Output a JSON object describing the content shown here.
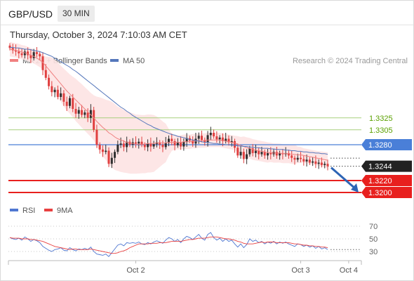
{
  "header": {
    "symbol": "GBP/USD",
    "timeframe": "30 MIN",
    "datetime": "Thursday, October 3, 2024 7:10:03 AM CET"
  },
  "legend": {
    "ma20_label": "MA 20 + Bollinger Bands",
    "ma50_label": "MA 50",
    "source": "Research © 2024 Trading Central",
    "rsi_label": "RSI",
    "rsi_ma_label": "9MA"
  },
  "colors": {
    "bull": "#2e2e2e",
    "bear": "#e04040",
    "ma20": "#f08080",
    "ma50": "#5577bb",
    "band_fill": "#fde3e3",
    "support": "#e8201e",
    "pivot": "#4a7fd8",
    "resistance_line": "#a7cf7d",
    "resistance_text": "#5aa000",
    "rsi": "#4f77d1",
    "rsi_ma": "#e84040",
    "arrow": "#2d64b5"
  },
  "chart_data": [
    {
      "type": "candlestick",
      "title": "GBP/USD 30 MIN",
      "x_tick_labels": [
        "Oct 2",
        "Oct 3",
        "Oct 4"
      ],
      "x_tick_index": [
        42,
        97,
        113
      ],
      "y_range": [
        1.319,
        1.336
      ],
      "last_price": 1.3244,
      "levels": [
        {
          "value": 1.3325,
          "label": "1.3325",
          "kind": "resistance"
        },
        {
          "value": 1.3305,
          "label": "1.3305",
          "kind": "resistance"
        },
        {
          "value": 1.328,
          "label": "1.3280",
          "kind": "pivot"
        },
        {
          "value": 1.3244,
          "label": "1.3244",
          "kind": "last"
        },
        {
          "value": 1.322,
          "label": "1.3220",
          "kind": "support"
        },
        {
          "value": 1.32,
          "label": "1.3200",
          "kind": "support"
        }
      ],
      "close": [
        1.3442,
        1.3438,
        1.3436,
        1.3433,
        1.343,
        1.3436,
        1.343,
        1.3425,
        1.3435,
        1.3432,
        1.3428,
        1.3405,
        1.3392,
        1.3378,
        1.3368,
        1.3372,
        1.336,
        1.3366,
        1.3352,
        1.3345,
        1.3358,
        1.334,
        1.3332,
        1.3338,
        1.333,
        1.3334,
        1.3325,
        1.3338,
        1.3305,
        1.328,
        1.3272,
        1.3268,
        1.327,
        1.3248,
        1.3258,
        1.3268,
        1.328,
        1.3282,
        1.3276,
        1.3285,
        1.328,
        1.3284,
        1.3282,
        1.3285,
        1.328,
        1.3276,
        1.3282,
        1.3277,
        1.3281,
        1.3284,
        1.328,
        1.3276,
        1.3283,
        1.329,
        1.3286,
        1.3279,
        1.3284,
        1.3277,
        1.3285,
        1.3291,
        1.3287,
        1.3282,
        1.329,
        1.3295,
        1.3288,
        1.3284,
        1.3296,
        1.33,
        1.3294,
        1.3289,
        1.3292,
        1.3286,
        1.329,
        1.3284,
        1.3286,
        1.3275,
        1.3262,
        1.3268,
        1.3256,
        1.3264,
        1.3274,
        1.3266,
        1.327,
        1.3264,
        1.3268,
        1.3262,
        1.3266,
        1.3264,
        1.3268,
        1.3262,
        1.3266,
        1.3264,
        1.3266,
        1.3262,
        1.3258,
        1.3255,
        1.3258,
        1.3256,
        1.3252,
        1.3255,
        1.325,
        1.3252,
        1.3248,
        1.325,
        1.3246,
        1.3248,
        1.3244
      ],
      "ma20": [
        1.344,
        1.3439,
        1.3438,
        1.3437,
        1.3435,
        1.3434,
        1.3432,
        1.343,
        1.3428,
        1.3425,
        1.3422,
        1.3418,
        1.3412,
        1.3406,
        1.34,
        1.3394,
        1.3388,
        1.3382,
        1.3376,
        1.337,
        1.3365,
        1.336,
        1.3355,
        1.335,
        1.3345,
        1.334,
        1.3335,
        1.333,
        1.3325,
        1.3319,
        1.3314,
        1.3309,
        1.3305,
        1.33,
        1.3297,
        1.3293,
        1.329,
        1.3288,
        1.3286,
        1.3284,
        1.3283,
        1.3282,
        1.3281,
        1.3281,
        1.3281,
        1.3281,
        1.3282,
        1.3282,
        1.3282,
        1.3283,
        1.3283,
        1.3283,
        1.3283,
        1.3284,
        1.3284,
        1.3284,
        1.3284,
        1.3284,
        1.3285,
        1.3285,
        1.3285,
        1.3286,
        1.3286,
        1.3287,
        1.3287,
        1.3287,
        1.3288,
        1.3288,
        1.3288,
        1.3288,
        1.3288,
        1.3287,
        1.3286,
        1.3285,
        1.3284,
        1.3283,
        1.3281,
        1.3279,
        1.3277,
        1.3275,
        1.3274,
        1.3272,
        1.3271,
        1.327,
        1.3269,
        1.3268,
        1.3267,
        1.3267,
        1.3266,
        1.3266,
        1.3266,
        1.3265,
        1.3265,
        1.3265,
        1.3264,
        1.3264,
        1.3263,
        1.3263,
        1.3262,
        1.3261,
        1.326,
        1.3259,
        1.3258,
        1.3257,
        1.3256,
        1.3255,
        1.3254
      ],
      "ma50": [
        1.3443,
        1.3443,
        1.3442,
        1.3442,
        1.3441,
        1.344,
        1.344,
        1.3439,
        1.3438,
        1.3437,
        1.3436,
        1.3434,
        1.3432,
        1.343,
        1.3428,
        1.3425,
        1.3422,
        1.3419,
        1.3416,
        1.3413,
        1.341,
        1.3406,
        1.3403,
        1.3399,
        1.3395,
        1.3391,
        1.3387,
        1.3383,
        1.3379,
        1.3375,
        1.3371,
        1.3367,
        1.3363,
        1.3359,
        1.3355,
        1.3351,
        1.3347,
        1.3343,
        1.334,
        1.3336,
        1.3333,
        1.3329,
        1.3326,
        1.3323,
        1.332,
        1.3317,
        1.3314,
        1.3312,
        1.3309,
        1.3307,
        1.3305,
        1.3303,
        1.3301,
        1.3299,
        1.3297,
        1.3296,
        1.3294,
        1.3293,
        1.3292,
        1.329,
        1.3289,
        1.3288,
        1.3287,
        1.3286,
        1.3285,
        1.3284,
        1.3284,
        1.3283,
        1.3282,
        1.3282,
        1.3281,
        1.3281,
        1.328,
        1.328,
        1.3279,
        1.3279,
        1.3278,
        1.3278,
        1.3277,
        1.3277,
        1.3276,
        1.3276,
        1.3275,
        1.3275,
        1.3274,
        1.3274,
        1.3274,
        1.3273,
        1.3273,
        1.3272,
        1.3272,
        1.3272,
        1.3271,
        1.3271,
        1.327,
        1.327,
        1.3269,
        1.3269,
        1.3268,
        1.3268,
        1.3267,
        1.3267,
        1.3266,
        1.3266,
        1.3265,
        1.3265,
        1.3264
      ]
    },
    {
      "type": "line",
      "title": "RSI",
      "y_ticks": [
        70,
        50,
        30
      ],
      "y_range": [
        20,
        80
      ],
      "series": [
        {
          "name": "RSI",
          "values": [
            52,
            50,
            49,
            51,
            48,
            53,
            50,
            46,
            49,
            47,
            44,
            38,
            35,
            32,
            30,
            33,
            34,
            36,
            32,
            31,
            36,
            33,
            31,
            34,
            33,
            35,
            33,
            37,
            30,
            26,
            25,
            24,
            26,
            22,
            28,
            34,
            40,
            42,
            39,
            44,
            43,
            44,
            43,
            45,
            42,
            41,
            44,
            42,
            45,
            47,
            45,
            43,
            48,
            52,
            50,
            46,
            49,
            44,
            50,
            54,
            52,
            49,
            53,
            57,
            51,
            48,
            57,
            60,
            52,
            48,
            51,
            46,
            50,
            46,
            48,
            42,
            37,
            42,
            36,
            41,
            50,
            46,
            48,
            44,
            46,
            42,
            45,
            43,
            46,
            42,
            45,
            43,
            45,
            42,
            40,
            38,
            42,
            41,
            38,
            40,
            37,
            39,
            35,
            38,
            34,
            36,
            33
          ]
        },
        {
          "name": "9MA",
          "values": [
            52,
            51,
            51,
            51,
            50,
            50,
            50,
            49,
            49,
            48,
            47,
            46,
            44,
            42,
            40,
            38,
            37,
            36,
            35,
            34,
            33,
            34,
            34,
            33,
            33,
            33,
            33,
            34,
            33,
            32,
            31,
            30,
            29,
            28,
            27,
            27,
            28,
            30,
            31,
            33,
            36,
            38,
            40,
            42,
            42,
            42,
            42,
            43,
            43,
            43,
            44,
            44,
            44,
            45,
            46,
            46,
            46,
            46,
            47,
            48,
            49,
            49,
            50,
            51,
            51,
            51,
            52,
            53,
            53,
            53,
            52,
            51,
            50,
            50,
            49,
            48,
            46,
            45,
            43,
            42,
            42,
            42,
            43,
            44,
            45,
            44,
            45,
            45,
            45,
            44,
            44,
            44,
            44,
            44,
            43,
            42,
            42,
            41,
            40,
            40,
            39,
            39,
            38,
            38,
            37,
            37,
            36
          ]
        }
      ]
    }
  ]
}
